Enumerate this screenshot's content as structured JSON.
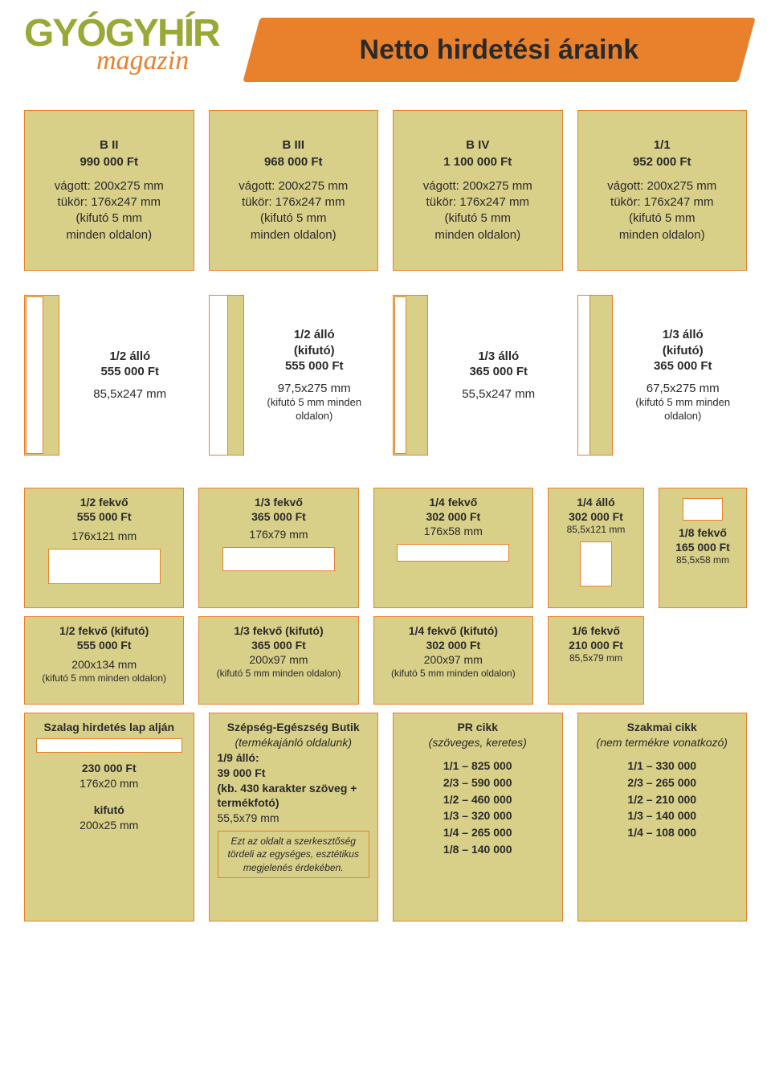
{
  "colors": {
    "orange": "#e9812c",
    "olive_text": "#9aa836",
    "card_fill": "#d8cf88",
    "card_border": "#e9812c",
    "dark": "#2a2a2a",
    "white": "#ffffff"
  },
  "header": {
    "logo1": "GYÓGYHÍR",
    "logo2": "magazin",
    "title": "Netto hirdetési áraink"
  },
  "row1": [
    {
      "title": "B II",
      "price": "990 000 Ft",
      "l1": "vágott: 200x275 mm",
      "l2": "tükör: 176x247 mm",
      "l3": "(kifutó 5 mm",
      "l4": "minden oldalon)"
    },
    {
      "title": "B III",
      "price": "968 000 Ft",
      "l1": "vágott: 200x275 mm",
      "l2": "tükör: 176x247 mm",
      "l3": "(kifutó 5 mm",
      "l4": "minden oldalon)"
    },
    {
      "title": "B IV",
      "price": "1 100 000 Ft",
      "l1": "vágott: 200x275 mm",
      "l2": "tükör: 176x247 mm",
      "l3": "(kifutó 5 mm",
      "l4": "minden oldalon)"
    },
    {
      "title": "1/1",
      "price": "952 000 Ft",
      "l1": "vágott: 200x275 mm",
      "l2": "tükör: 176x247 mm",
      "l3": "(kifutó 5 mm",
      "l4": "minden oldalon)"
    }
  ],
  "row2": [
    {
      "t1": "1/2 álló",
      "p": "555 000 Ft",
      "dim": "85,5x247 mm",
      "extra": ""
    },
    {
      "t1": "1/2 álló",
      "t2": "(kifutó)",
      "p": "555 000 Ft",
      "dim": "97,5x275 mm",
      "extra": "(kifutó 5 mm minden oldalon)"
    },
    {
      "t1": "1/3 álló",
      "p": "365 000 Ft",
      "dim": "55,5x247 mm",
      "extra": ""
    },
    {
      "t1": "1/3 álló",
      "t2": "(kifutó)",
      "p": "365 000 Ft",
      "dim": "67,5x275 mm",
      "extra": "(kifutó 5 mm minden oldalon)"
    }
  ],
  "row3": {
    "c1a": {
      "t": "1/2 fekvő",
      "p": "555 000 Ft",
      "dim": "176x121 mm"
    },
    "c1b": {
      "t": "1/2 fekvő (kifutó)",
      "p": "555 000 Ft",
      "dim": "200x134 mm",
      "ex": "(kifutó 5 mm minden oldalon)"
    },
    "c2a": {
      "t": "1/3 fekvő",
      "p": "365 000 Ft",
      "dim": "176x79 mm"
    },
    "c2b": {
      "t": "1/3 fekvő (kifutó)",
      "p": "365 000 Ft",
      "dim": "200x97 mm",
      "ex": "(kifutó 5 mm minden oldalon)"
    },
    "c3a": {
      "t": "1/4 fekvő",
      "p": "302 000 Ft",
      "dim": "176x58 mm"
    },
    "c3b": {
      "t": "1/4 fekvő (kifutó)",
      "p": "302 000 Ft",
      "dim": "200x97 mm",
      "ex": "(kifutó 5 mm minden oldalon)"
    },
    "c4a": {
      "t": "1/4 álló",
      "p": "302 000 Ft",
      "dim": "85,5x121 mm"
    },
    "c4b": {
      "t": "1/6 fekvő",
      "p": "210 000 Ft",
      "dim": "85,5x79 mm"
    },
    "c5": {
      "t": "1/8 fekvő",
      "p": "165 000 Ft",
      "dim": "85,5x58 mm"
    }
  },
  "row4": {
    "c1": {
      "t": "Szalag hirdetés lap alján",
      "p": "230 000 Ft",
      "dim": "176x20 mm",
      "t2": "kifutó",
      "dim2": "200x25 mm"
    },
    "c2": {
      "t": "Szépség-Egészség Butik",
      "s": "(termékajánló oldalunk)",
      "l1": "1/9 álló:",
      "l2": "39 000 Ft",
      "l3": "(kb. 430 karakter szöveg + termékfotó)",
      "dim": "55,5x79 mm",
      "note": "Ezt az oldalt a szerkesztőség tördeli az egységes, esztétikus megjelenés érdekében."
    },
    "c3": {
      "t": "PR cikk",
      "s": "(szöveges, keretes)",
      "items": [
        "1/1 – 825 000",
        "2/3 – 590 000",
        "1/2 – 460 000",
        "1/3 – 320 000",
        "1/4 – 265 000",
        "1/8 – 140 000"
      ]
    },
    "c4": {
      "t": "Szakmai cikk",
      "s": "(nem termékre vonatkozó)",
      "items": [
        "1/1 – 330 000",
        "2/3 – 265 000",
        "1/2 – 210 000",
        "1/3 – 140 000",
        "1/4 – 108 000"
      ]
    }
  }
}
